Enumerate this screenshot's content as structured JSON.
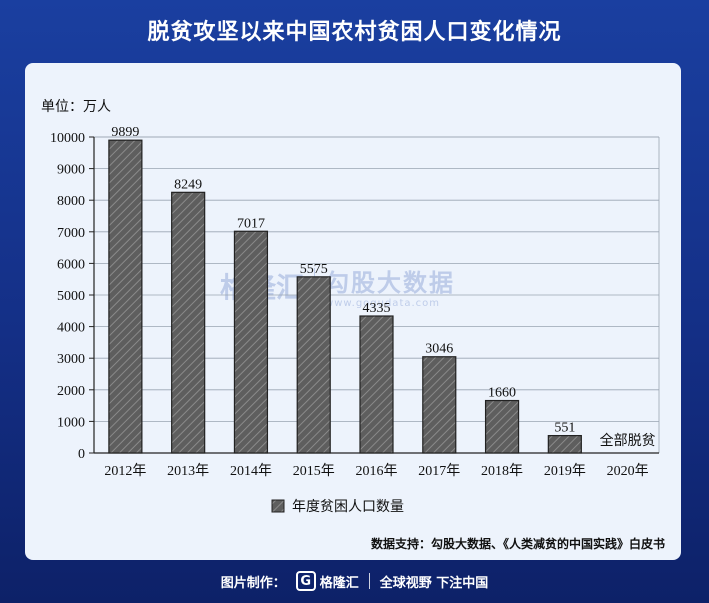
{
  "title": "脱贫攻坚以来中国农村贫困人口变化情况",
  "unit_label": "单位：万人",
  "legend_label": "年度贫困人口数量",
  "source": "数据支持：勾股大数据、《人类减贫的中国实践》白皮书",
  "watermark": {
    "logo": "格隆汇",
    "brand": "勾股大数据",
    "url": "www.gogudata.com"
  },
  "footer": {
    "made_by": "图片制作：",
    "logo_name": "格隆汇",
    "slogan": "全球视野 下注中国"
  },
  "colors": {
    "bar_fill": "#5e5e5e",
    "bar_stroke": "#222222",
    "hatch": "#8a8a8a",
    "grid": "#9aa4b2"
  },
  "chart_data": {
    "type": "bar",
    "categories": [
      "2012年",
      "2013年",
      "2014年",
      "2015年",
      "2016年",
      "2017年",
      "2018年",
      "2019年",
      "2020年"
    ],
    "values": [
      9899,
      8249,
      7017,
      5575,
      4335,
      3046,
      1660,
      551,
      0
    ],
    "data_labels": [
      "9899",
      "8249",
      "7017",
      "5575",
      "4335",
      "3046",
      "1660",
      "551",
      "全部脱贫"
    ],
    "ylabel": "单位：万人",
    "ylim": [
      0,
      10000
    ],
    "yticks": [
      0,
      1000,
      2000,
      3000,
      4000,
      5000,
      6000,
      7000,
      8000,
      9000,
      10000
    ],
    "grid": true,
    "legend": "bottom",
    "series": [
      {
        "name": "年度贫困人口数量",
        "values": [
          9899,
          8249,
          7017,
          5575,
          4335,
          3046,
          1660,
          551,
          0
        ]
      }
    ]
  }
}
